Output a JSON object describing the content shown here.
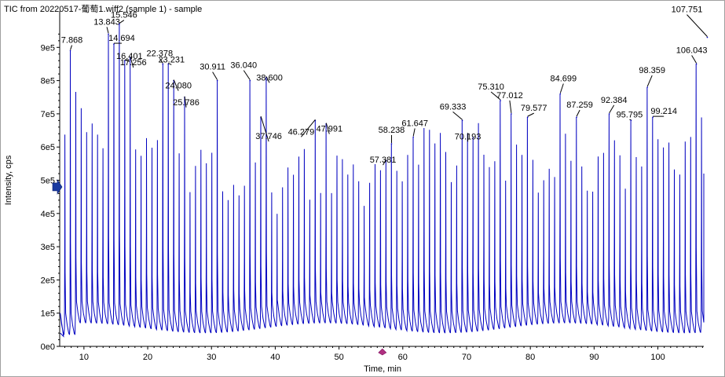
{
  "chart_data": {
    "type": "line",
    "title": "TIC from 20220517-葡萄1.wiff2 (sample 1) - sample",
    "xlabel": "Time, min",
    "ylabel": "Intensity, cps",
    "xlim": [
      6.2,
      107.2
    ],
    "ylim": [
      0,
      1000000
    ],
    "x_ticks": [
      10,
      20,
      30,
      40,
      50,
      60,
      70,
      80,
      90,
      100
    ],
    "x_tick_labels": [
      "10",
      "20",
      "30",
      "40",
      "50",
      "60",
      "70",
      "80",
      "90",
      "100"
    ],
    "y_ticks": [
      0,
      100000,
      200000,
      300000,
      400000,
      500000,
      600000,
      700000,
      800000,
      900000
    ],
    "y_tick_labels": [
      "0e0",
      "1e5",
      "2e5",
      "3e5",
      "4e5",
      "5e5",
      "6e5",
      "7e5",
      "8e5",
      "9e5"
    ],
    "grid": false,
    "line_color": "#0000c0",
    "series": [
      {
        "x": [
          7.868,
          13.843,
          14.694,
          15.546,
          16.401,
          17.256,
          22.378,
          23.231,
          24.08,
          25.786,
          30.911,
          36.04,
          37.746,
          38.6,
          46.279,
          47.991,
          57.381,
          58.238,
          61.647,
          69.333,
          70.193,
          75.31,
          77.012,
          79.577,
          84.699,
          87.259,
          92.384,
          95.795,
          98.359,
          99.214,
          106.043,
          107.751
        ],
        "y": [
          890000,
          940000,
          910000,
          970000,
          860000,
          870000,
          850000,
          850000,
          800000,
          750000,
          800000,
          800000,
          690000,
          810000,
          680000,
          670000,
          560000,
          610000,
          630000,
          680000,
          640000,
          740000,
          700000,
          690000,
          760000,
          690000,
          700000,
          680000,
          780000,
          690000,
          850000,
          930000
        ]
      }
    ],
    "peak_labels": [
      "7.868",
      "13.843",
      "14.694",
      "15.546",
      "16.401",
      "17.256",
      "22.378",
      "23.231",
      "24.080",
      "25.786",
      "30.911",
      "36.040",
      "37.746",
      "38.600",
      "46.279",
      "47.991",
      "57.381",
      "58.238",
      "61.647",
      "69.333",
      "70.193",
      "75.310",
      "77.012",
      "79.577",
      "84.699",
      "87.259",
      "92.384",
      "95.795",
      "98.359",
      "99.214",
      "106.043",
      "107.751"
    ],
    "markers": {
      "y_axis_arrow_value": 480000,
      "x_axis_marker_value": 56.8
    }
  }
}
